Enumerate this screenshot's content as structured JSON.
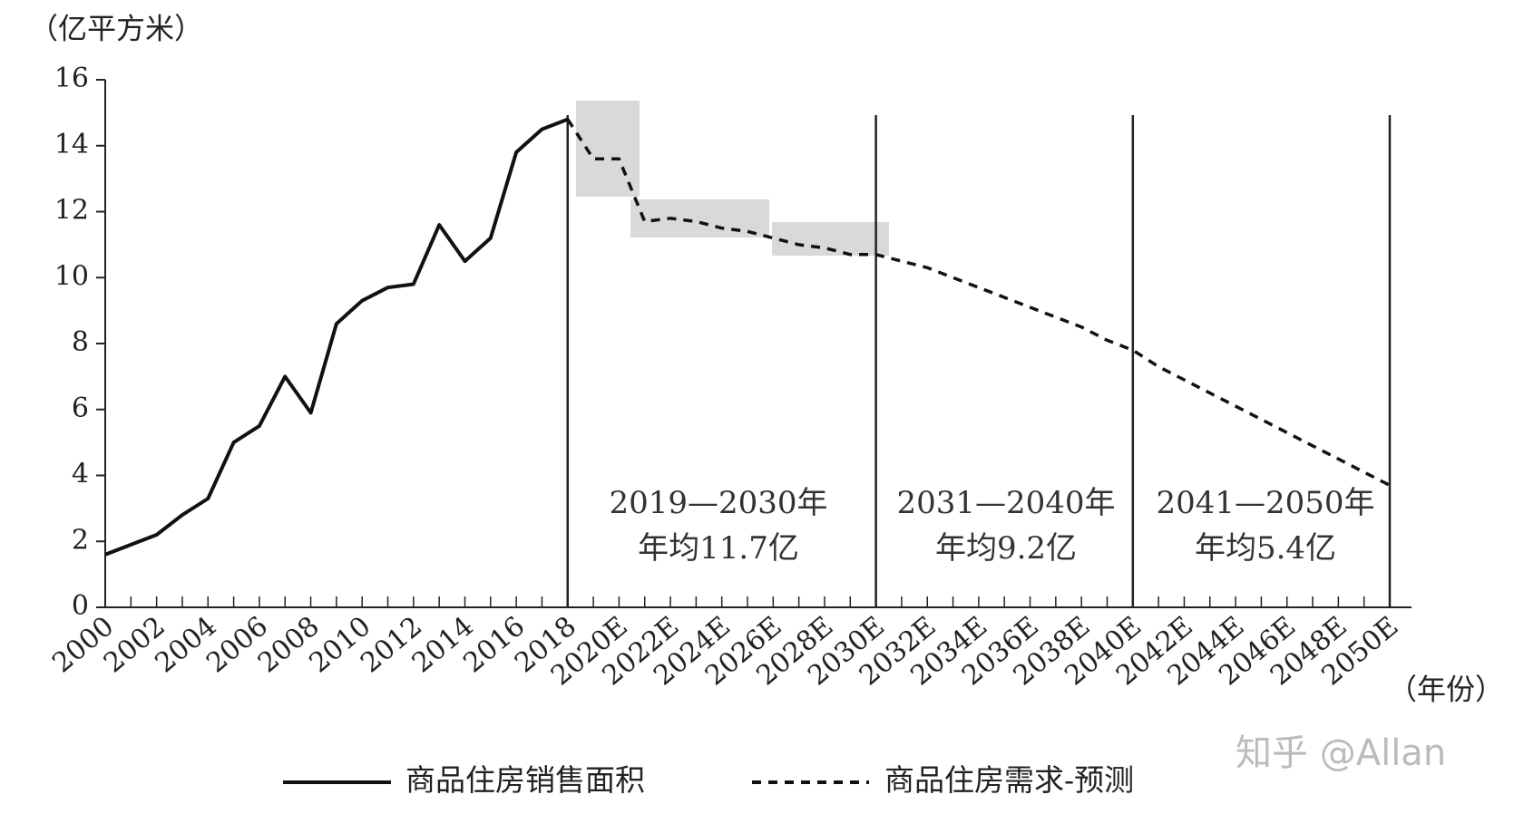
{
  "chart_data": {
    "type": "line",
    "y_label": "（亿平方米）",
    "x_label": "（年份）",
    "categories": [
      "2000",
      null,
      "2002",
      null,
      "2004",
      null,
      "2006",
      null,
      "2008",
      null,
      "2010",
      null,
      "2012",
      null,
      "2014",
      null,
      "2016",
      null,
      "2018",
      null,
      "2020E",
      null,
      "2022E",
      null,
      "2024E",
      null,
      "2026E",
      null,
      "2028E",
      null,
      "2030E",
      null,
      "2032E",
      null,
      "2034E",
      null,
      "2036E",
      null,
      "2038E",
      null,
      "2040E",
      null,
      "2042E",
      null,
      "2044E",
      null,
      "2046E",
      null,
      "2048E",
      null,
      "2050E"
    ],
    "series": [
      {
        "name": "商品住房销售面积",
        "color": "#111111",
        "dash": false,
        "values": [
          1.6,
          1.9,
          2.2,
          2.8,
          3.3,
          5.0,
          5.5,
          7.0,
          5.9,
          8.6,
          9.3,
          9.7,
          9.8,
          11.6,
          10.5,
          11.2,
          13.8,
          14.5,
          14.8,
          null,
          null,
          null,
          null,
          null,
          null,
          null,
          null,
          null,
          null,
          null,
          null,
          null,
          null,
          null,
          null,
          null,
          null,
          null,
          null,
          null,
          null,
          null,
          null,
          null,
          null,
          null,
          null,
          null,
          null,
          null,
          null
        ]
      },
      {
        "name": "商品住房需求-预测",
        "color": "#111111",
        "dash": true,
        "values": [
          null,
          null,
          null,
          null,
          null,
          null,
          null,
          null,
          null,
          null,
          null,
          null,
          null,
          null,
          null,
          null,
          null,
          null,
          14.8,
          13.6,
          13.6,
          11.7,
          11.8,
          11.7,
          11.5,
          11.4,
          11.2,
          11.0,
          10.9,
          10.7,
          10.7,
          10.5,
          10.3,
          10.0,
          9.7,
          9.4,
          9.1,
          8.8,
          8.5,
          8.1,
          7.8,
          7.3,
          6.9,
          6.5,
          6.1,
          5.7,
          5.3,
          4.9,
          4.5,
          4.1,
          3.7
        ]
      }
    ],
    "ylim": [
      0,
      16
    ],
    "yticks": [
      0,
      2,
      4,
      6,
      8,
      10,
      12,
      14,
      16
    ],
    "annotations": [
      {
        "line1": "2019—2030年",
        "line2": "年均11.7亿"
      },
      {
        "line1": "2031—2040年",
        "line2": "年均9.2亿"
      },
      {
        "line1": "2041—2050年",
        "line2": "年均5.4亿"
      }
    ],
    "watermark": "知乎 @Allan"
  }
}
